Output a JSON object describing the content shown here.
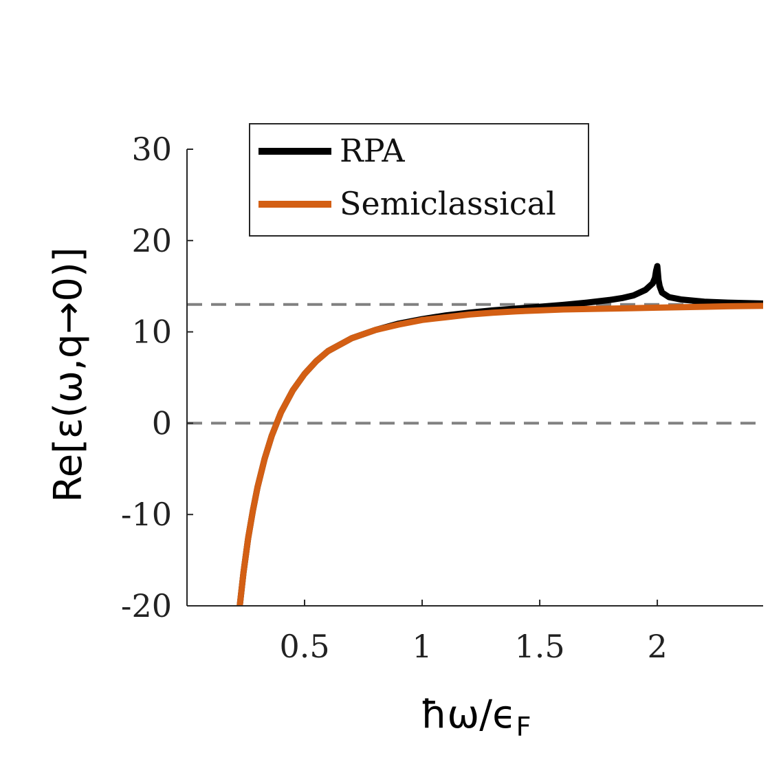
{
  "chart_data": {
    "type": "line",
    "title": "",
    "xlabel": "ħω/ϵ",
    "xlabel_subscript": "F",
    "ylabel": "Re[ε(ω,q→0)]",
    "xlim": [
      0.0,
      2.45
    ],
    "ylim": [
      -20,
      30
    ],
    "xticks": [
      0.5,
      1,
      1.5,
      2
    ],
    "xtick_labels": [
      "0.5",
      "1",
      "1.5",
      "2"
    ],
    "yticks": [
      -20,
      -10,
      0,
      10,
      20,
      30
    ],
    "ytick_labels": [
      "-20",
      "-10",
      "0",
      "10",
      "20",
      "30"
    ],
    "grid": false,
    "legend_position": "top-left",
    "reference_lines": [
      {
        "name": "epsilon-infinity",
        "y": 13.0,
        "style": "dashed",
        "color": "#808080"
      },
      {
        "name": "zero",
        "y": 0,
        "style": "dashed",
        "color": "#808080"
      }
    ],
    "series": [
      {
        "name": "RPA",
        "color": "#000000",
        "x": [
          0.22,
          0.24,
          0.26,
          0.28,
          0.3,
          0.33,
          0.36,
          0.4,
          0.45,
          0.5,
          0.55,
          0.6,
          0.7,
          0.8,
          0.9,
          1.0,
          1.1,
          1.2,
          1.3,
          1.4,
          1.5,
          1.6,
          1.7,
          1.8,
          1.85,
          1.9,
          1.95,
          1.98,
          1.99,
          1.995,
          2.0,
          2.005,
          2.01,
          2.02,
          2.05,
          2.1,
          2.2,
          2.3,
          2.45
        ],
        "values": [
          -21.0,
          -16.4,
          -12.6,
          -9.6,
          -7.0,
          -3.9,
          -1.4,
          1.2,
          3.6,
          5.4,
          6.8,
          7.9,
          9.3,
          10.2,
          10.9,
          11.4,
          11.8,
          12.1,
          12.35,
          12.55,
          12.75,
          12.95,
          13.2,
          13.5,
          13.7,
          14.0,
          14.6,
          15.3,
          15.9,
          16.7,
          17.2,
          15.7,
          15.0,
          14.3,
          13.8,
          13.55,
          13.3,
          13.2,
          13.1
        ]
      },
      {
        "name": "Semiclassical",
        "color": "#d35f14",
        "x": [
          0.22,
          0.24,
          0.26,
          0.28,
          0.3,
          0.33,
          0.36,
          0.4,
          0.45,
          0.5,
          0.55,
          0.6,
          0.7,
          0.8,
          0.9,
          1.0,
          1.1,
          1.2,
          1.3,
          1.4,
          1.5,
          1.6,
          1.7,
          1.8,
          1.9,
          2.0,
          2.1,
          2.2,
          2.3,
          2.45
        ],
        "values": [
          -21.0,
          -16.4,
          -12.6,
          -9.6,
          -7.0,
          -3.9,
          -1.4,
          1.2,
          3.6,
          5.4,
          6.8,
          7.9,
          9.3,
          10.2,
          10.8,
          11.3,
          11.6,
          11.9,
          12.1,
          12.25,
          12.35,
          12.45,
          12.5,
          12.55,
          12.6,
          12.65,
          12.7,
          12.75,
          12.8,
          12.85
        ]
      }
    ]
  }
}
